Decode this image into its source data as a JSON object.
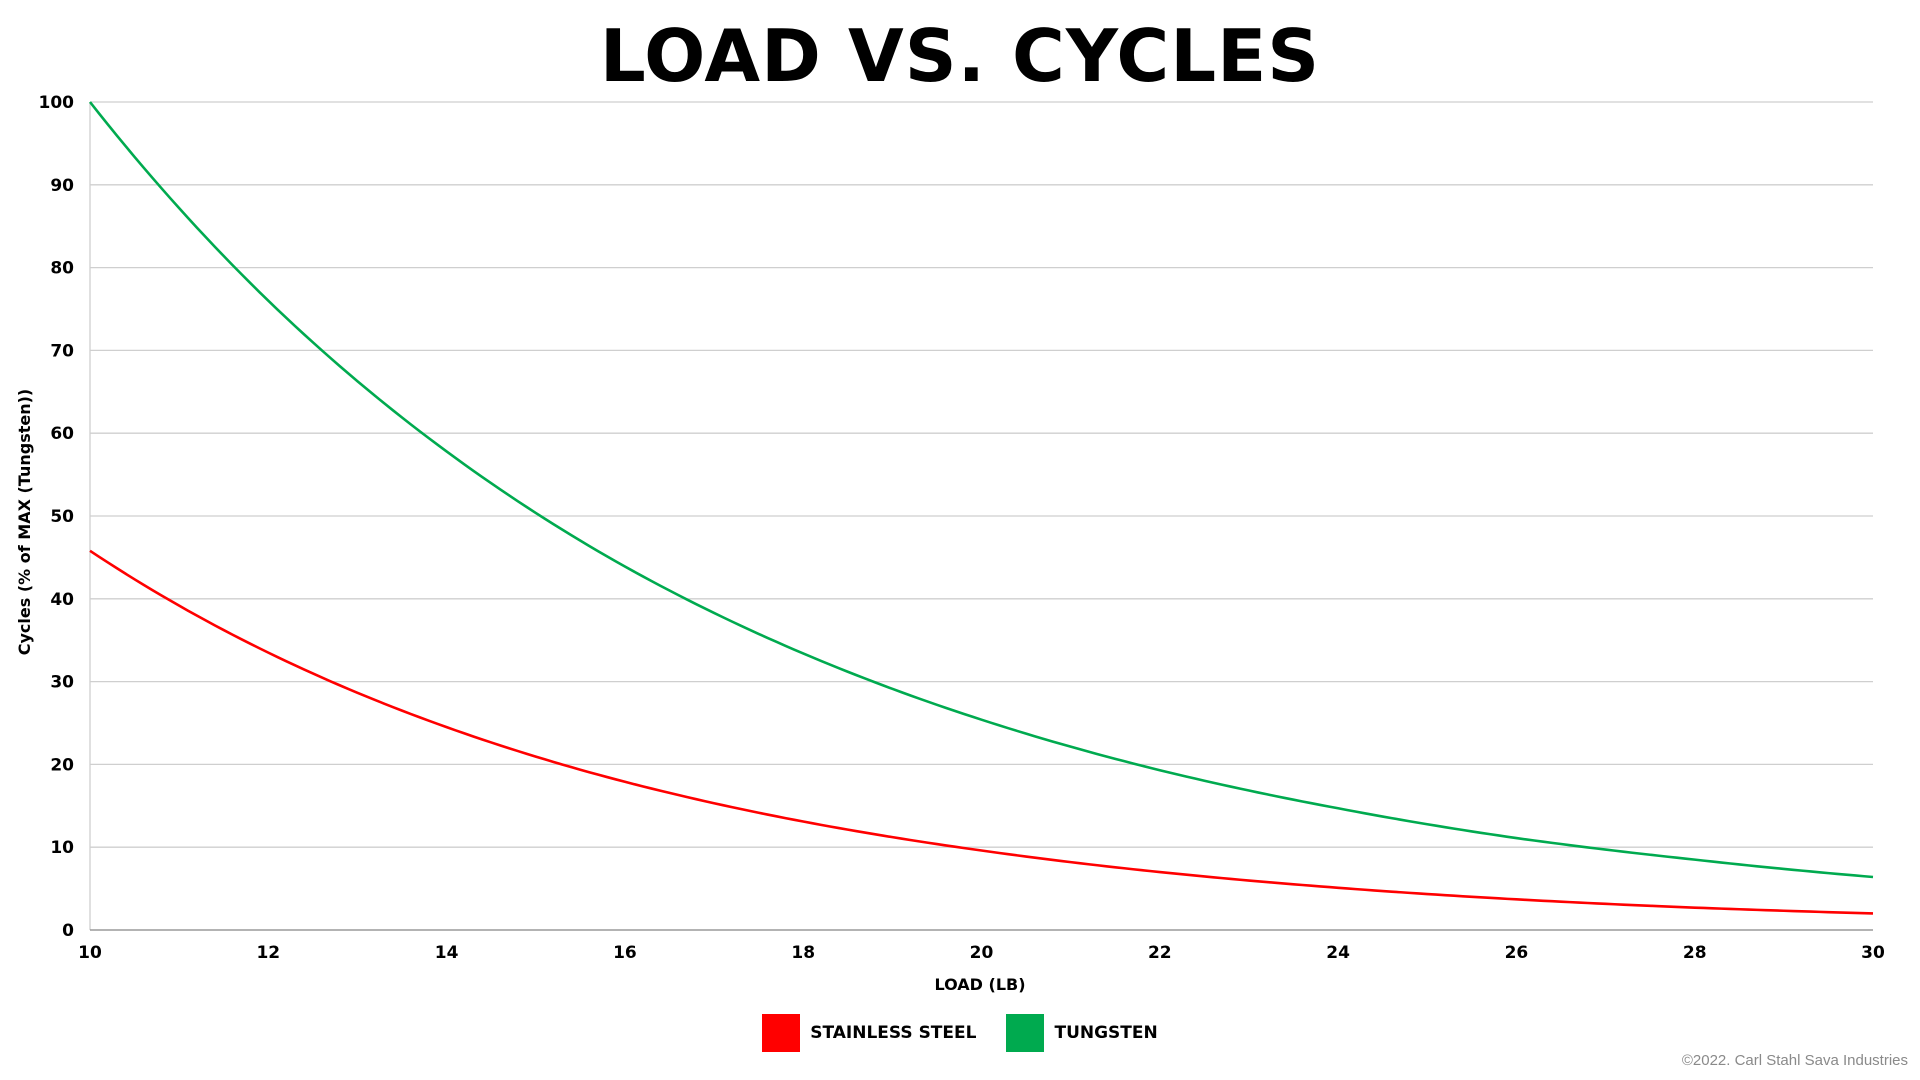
{
  "chart_data": {
    "type": "line",
    "title": "LOAD VS. CYCLES",
    "xlabel": "LOAD (LB)",
    "ylabel": "Cycles (% of MAX (Tungsten))",
    "xlim": [
      10,
      30
    ],
    "ylim": [
      0,
      100
    ],
    "x_ticks": [
      "10",
      "12",
      "14",
      "16",
      "18",
      "20",
      "22",
      "24",
      "26",
      "28",
      "30"
    ],
    "y_ticks": [
      "0",
      "10",
      "20",
      "30",
      "40",
      "50",
      "60",
      "70",
      "80",
      "90",
      "100"
    ],
    "grid": "horizontal",
    "legend_position": "bottom-center",
    "x": [
      10,
      12,
      14,
      16,
      18,
      20,
      22,
      24,
      26,
      28,
      30
    ],
    "series": [
      {
        "name": "STAINLESS STEEL",
        "color": "#ff0000",
        "values": [
          45.8,
          33.5,
          24.5,
          17.9,
          13.1,
          9.6,
          7.0,
          5.1,
          3.7,
          2.7,
          2.0
        ]
      },
      {
        "name": "TUNGSTEN",
        "color": "#00aa4f",
        "values": [
          100,
          76.0,
          57.8,
          43.9,
          33.4,
          25.4,
          19.3,
          14.7,
          11.1,
          8.5,
          6.4
        ]
      }
    ]
  },
  "copyright": "©2022. Carl Stahl Sava Industries"
}
